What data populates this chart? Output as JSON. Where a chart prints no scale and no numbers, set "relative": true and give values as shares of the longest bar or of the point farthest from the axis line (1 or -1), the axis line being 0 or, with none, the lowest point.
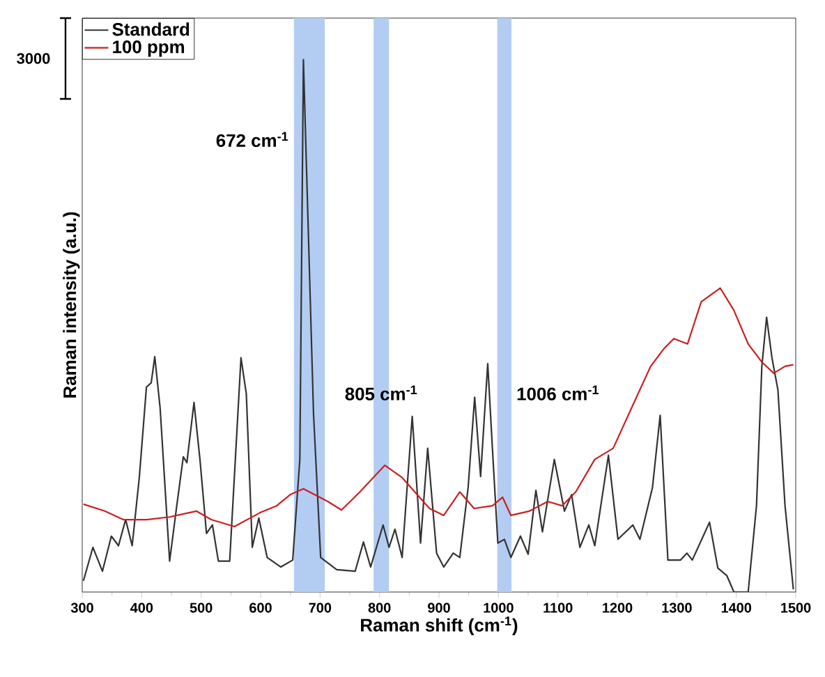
{
  "chart_data": {
    "type": "line",
    "relative": true,
    "xlabel": "Raman shift (cm$^{-1}$)",
    "ylabel": "Raman intensity (a.u.)",
    "xlim": [
      300,
      1500
    ],
    "xticks": [
      300,
      400,
      500,
      600,
      700,
      800,
      900,
      1000,
      1100,
      1200,
      1300,
      1400,
      1500
    ],
    "legend": "top left",
    "grid": false,
    "marker": "none",
    "line_style": "solid",
    "bands": [
      {
        "axis": "x",
        "from": 656,
        "to": 708,
        "color": "#b3cdf2",
        "label": "672 cm$^{-1}$"
      },
      {
        "axis": "x",
        "from": 790,
        "to": 816,
        "color": "#b3cdf2",
        "label": "805 cm$^{-1}$"
      },
      {
        "axis": "x",
        "from": 998,
        "to": 1022,
        "color": "#b3cdf2",
        "label": "1006 cm$^{-1}$"
      }
    ],
    "annotations": [
      "3000"
    ],
    "series": [
      {
        "name": "Standard",
        "color": "#333333",
        "x": [
          302,
          318,
          334,
          349,
          361,
          373,
          384,
          396,
          408,
          416,
          422,
          431,
          447,
          459,
          470,
          476,
          488,
          498,
          509,
          519,
          529,
          548,
          567,
          576,
          586,
          597,
          611,
          634,
          654,
          666,
          672,
          689,
          701,
          728,
          759,
          773,
          785,
          806,
          816,
          826,
          838,
          855,
          869,
          881,
          896,
          908,
          924,
          935,
          949,
          960,
          970,
          982,
          990,
          999,
          1010,
          1021,
          1037,
          1050,
          1063,
          1074,
          1094,
          1111,
          1123,
          1137,
          1152,
          1162,
          1185,
          1201,
          1226,
          1238,
          1259,
          1272,
          1285,
          1306,
          1317,
          1326,
          1355,
          1369,
          1384,
          1396,
          1420,
          1434,
          1443,
          1451,
          1460,
          1470,
          1482,
          1496
        ],
        "values": [
          0.021,
          0.084,
          0.039,
          0.105,
          0.087,
          0.136,
          0.087,
          0.215,
          0.385,
          0.393,
          0.442,
          0.346,
          0.058,
          0.162,
          0.254,
          0.243,
          0.356,
          0.249,
          0.11,
          0.126,
          0.058,
          0.058,
          0.44,
          0.372,
          0.084,
          0.139,
          0.065,
          0.047,
          0.06,
          0.249,
          1,
          0.335,
          0.065,
          0.042,
          0.039,
          0.094,
          0.047,
          0.126,
          0.084,
          0.118,
          0.065,
          0.33,
          0.092,
          0.27,
          0.073,
          0.047,
          0.073,
          0.065,
          0.196,
          0.366,
          0.217,
          0.429,
          0.267,
          0.092,
          0.099,
          0.065,
          0.105,
          0.071,
          0.191,
          0.113,
          0.249,
          0.152,
          0.183,
          0.084,
          0.126,
          0.087,
          0.257,
          0.099,
          0.126,
          0.099,
          0.196,
          0.332,
          0.06,
          0.06,
          0.073,
          0.06,
          0.131,
          0.045,
          0.031,
          0,
          0,
          0.162,
          0.424,
          0.516,
          0.44,
          0.38,
          0.162,
          0.005
        ]
      },
      {
        "name": "100 ppm",
        "color": "#cc1f1f",
        "x": [
          302,
          338,
          369,
          408,
          447,
          492,
          517,
          556,
          599,
          627,
          650,
          672,
          713,
          736,
          767,
          809,
          838,
          884,
          908,
          935,
          959,
          990,
          1007,
          1021,
          1052,
          1083,
          1107,
          1130,
          1162,
          1193,
          1224,
          1256,
          1279,
          1295,
          1318,
          1341,
          1373,
          1396,
          1420,
          1443,
          1463,
          1482,
          1496
        ],
        "values": [
          0.165,
          0.152,
          0.136,
          0.136,
          0.141,
          0.152,
          0.136,
          0.123,
          0.149,
          0.162,
          0.183,
          0.194,
          0.17,
          0.154,
          0.188,
          0.238,
          0.215,
          0.157,
          0.144,
          0.188,
          0.157,
          0.162,
          0.178,
          0.144,
          0.152,
          0.17,
          0.162,
          0.188,
          0.249,
          0.27,
          0.346,
          0.424,
          0.458,
          0.476,
          0.466,
          0.545,
          0.571,
          0.529,
          0.466,
          0.432,
          0.411,
          0.424,
          0.427
        ]
      }
    ]
  }
}
